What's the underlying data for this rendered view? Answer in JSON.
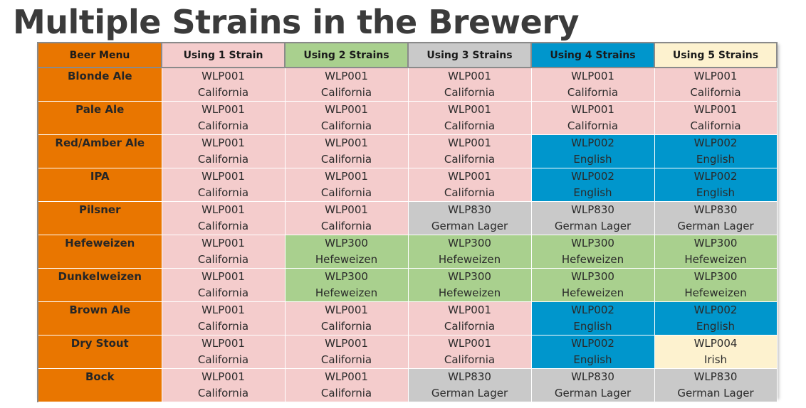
{
  "title": "Multiple Strains in the Brewery",
  "colors": {
    "menu": "#e97600",
    "pink": "#f4cccc",
    "green": "#a9d08e",
    "gray": "#c9c9c9",
    "blue": "#0096cc",
    "cream": "#fdf2cf"
  },
  "headers": [
    {
      "label": "Beer Menu",
      "color": "#e97600"
    },
    {
      "label": "Using 1 Strain",
      "color": "#f4cccc"
    },
    {
      "label": "Using 2 Strains",
      "color": "#a9d08e"
    },
    {
      "label": "Using 3 Strains",
      "color": "#c9c9c9"
    },
    {
      "label": "Using 4 Strains",
      "color": "#0096cc"
    },
    {
      "label": "Using 5 Strains",
      "color": "#fdf2cf"
    }
  ],
  "rows": [
    {
      "beer": "Blonde Ale",
      "cells": [
        {
          "code": "WLP001",
          "name": "California",
          "color": "#f4cccc"
        },
        {
          "code": "WLP001",
          "name": "California",
          "color": "#f4cccc"
        },
        {
          "code": "WLP001",
          "name": "California",
          "color": "#f4cccc"
        },
        {
          "code": "WLP001",
          "name": "California",
          "color": "#f4cccc"
        },
        {
          "code": "WLP001",
          "name": "California",
          "color": "#f4cccc"
        }
      ]
    },
    {
      "beer": "Pale Ale",
      "cells": [
        {
          "code": "WLP001",
          "name": "California",
          "color": "#f4cccc"
        },
        {
          "code": "WLP001",
          "name": "California",
          "color": "#f4cccc"
        },
        {
          "code": "WLP001",
          "name": "California",
          "color": "#f4cccc"
        },
        {
          "code": "WLP001",
          "name": "California",
          "color": "#f4cccc"
        },
        {
          "code": "WLP001",
          "name": "California",
          "color": "#f4cccc"
        }
      ]
    },
    {
      "beer": "Red/Amber Ale",
      "cells": [
        {
          "code": "WLP001",
          "name": "California",
          "color": "#f4cccc"
        },
        {
          "code": "WLP001",
          "name": "California",
          "color": "#f4cccc"
        },
        {
          "code": "WLP001",
          "name": "California",
          "color": "#f4cccc"
        },
        {
          "code": "WLP002",
          "name": "English",
          "color": "#0096cc"
        },
        {
          "code": "WLP002",
          "name": "English",
          "color": "#0096cc"
        }
      ]
    },
    {
      "beer": "IPA",
      "cells": [
        {
          "code": "WLP001",
          "name": "California",
          "color": "#f4cccc"
        },
        {
          "code": "WLP001",
          "name": "California",
          "color": "#f4cccc"
        },
        {
          "code": "WLP001",
          "name": "California",
          "color": "#f4cccc"
        },
        {
          "code": "WLP002",
          "name": "English",
          "color": "#0096cc"
        },
        {
          "code": "WLP002",
          "name": "English",
          "color": "#0096cc"
        }
      ]
    },
    {
      "beer": "Pilsner",
      "cells": [
        {
          "code": "WLP001",
          "name": "California",
          "color": "#f4cccc"
        },
        {
          "code": "WLP001",
          "name": "California",
          "color": "#f4cccc"
        },
        {
          "code": "WLP830",
          "name": "German Lager",
          "color": "#c9c9c9"
        },
        {
          "code": "WLP830",
          "name": "German Lager",
          "color": "#c9c9c9"
        },
        {
          "code": "WLP830",
          "name": "German Lager",
          "color": "#c9c9c9"
        }
      ]
    },
    {
      "beer": "Hefeweizen",
      "cells": [
        {
          "code": "WLP001",
          "name": "California",
          "color": "#f4cccc"
        },
        {
          "code": "WLP300",
          "name": "Hefeweizen",
          "color": "#a9d08e"
        },
        {
          "code": "WLP300",
          "name": "Hefeweizen",
          "color": "#a9d08e"
        },
        {
          "code": "WLP300",
          "name": "Hefeweizen",
          "color": "#a9d08e"
        },
        {
          "code": "WLP300",
          "name": "Hefeweizen",
          "color": "#a9d08e"
        }
      ]
    },
    {
      "beer": "Dunkelweizen",
      "cells": [
        {
          "code": "WLP001",
          "name": "California",
          "color": "#f4cccc"
        },
        {
          "code": "WLP300",
          "name": "Hefeweizen",
          "color": "#a9d08e"
        },
        {
          "code": "WLP300",
          "name": "Hefeweizen",
          "color": "#a9d08e"
        },
        {
          "code": "WLP300",
          "name": "Hefeweizen",
          "color": "#a9d08e"
        },
        {
          "code": "WLP300",
          "name": "Hefeweizen",
          "color": "#a9d08e"
        }
      ]
    },
    {
      "beer": "Brown Ale",
      "cells": [
        {
          "code": "WLP001",
          "name": "California",
          "color": "#f4cccc"
        },
        {
          "code": "WLP001",
          "name": "California",
          "color": "#f4cccc"
        },
        {
          "code": "WLP001",
          "name": "California",
          "color": "#f4cccc"
        },
        {
          "code": "WLP002",
          "name": "English",
          "color": "#0096cc"
        },
        {
          "code": "WLP002",
          "name": "English",
          "color": "#0096cc"
        }
      ]
    },
    {
      "beer": "Dry Stout",
      "cells": [
        {
          "code": "WLP001",
          "name": "California",
          "color": "#f4cccc"
        },
        {
          "code": "WLP001",
          "name": "California",
          "color": "#f4cccc"
        },
        {
          "code": "WLP001",
          "name": "California",
          "color": "#f4cccc"
        },
        {
          "code": "WLP002",
          "name": "English",
          "color": "#0096cc"
        },
        {
          "code": "WLP004",
          "name": "Irish",
          "color": "#fdf2cf"
        }
      ]
    },
    {
      "beer": "Bock",
      "cells": [
        {
          "code": "WLP001",
          "name": "California",
          "color": "#f4cccc"
        },
        {
          "code": "WLP001",
          "name": "California",
          "color": "#f4cccc"
        },
        {
          "code": "WLP830",
          "name": "German Lager",
          "color": "#c9c9c9"
        },
        {
          "code": "WLP830",
          "name": "German Lager",
          "color": "#c9c9c9"
        },
        {
          "code": "WLP830",
          "name": "German Lager",
          "color": "#c9c9c9"
        }
      ]
    }
  ]
}
